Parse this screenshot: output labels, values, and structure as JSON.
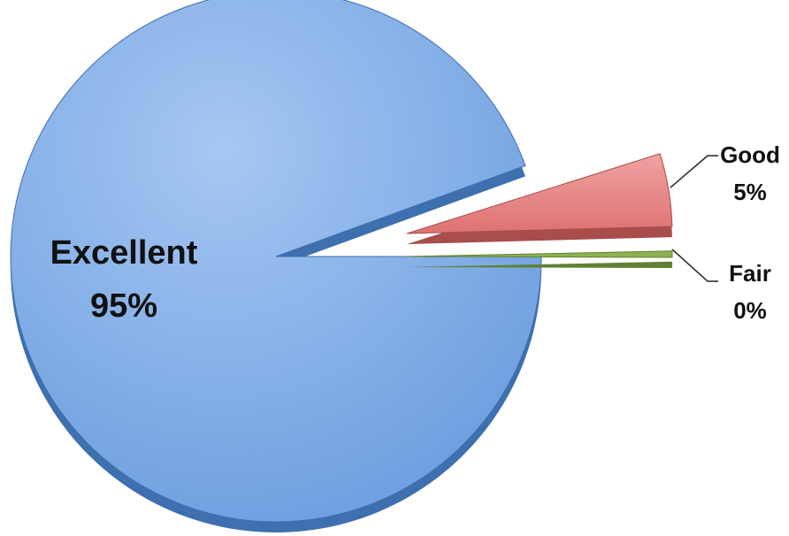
{
  "chart_data": {
    "type": "pie",
    "categories": [
      "Excellent",
      "Good",
      "Fair"
    ],
    "values": [
      95,
      5,
      0
    ],
    "labels": [
      {
        "name": "Excellent",
        "pct": "95%"
      },
      {
        "name": "Good",
        "pct": "5%"
      },
      {
        "name": "Fair",
        "pct": "0%"
      }
    ],
    "colors": [
      "#7aaae6",
      "#e07b7b",
      "#8fb050"
    ],
    "exploded": [
      "Good",
      "Fair"
    ],
    "legend": "none"
  }
}
